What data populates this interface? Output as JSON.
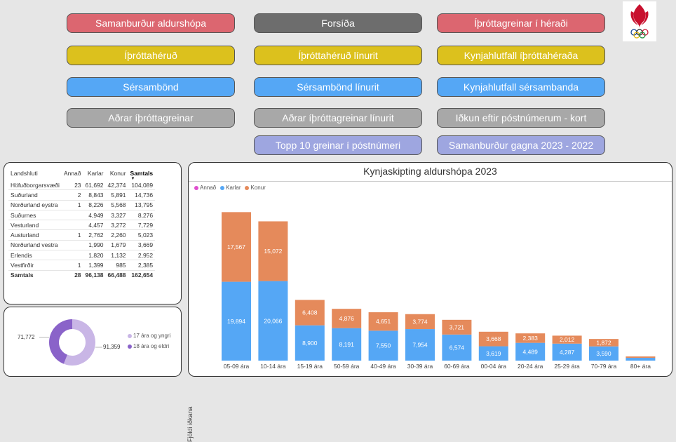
{
  "nav": {
    "samanburdur_aldurshopa": "Samanburður aldurshópa",
    "forsida": "Forsíða",
    "ithrottagreinar_i_heradi": "Íþróttagreinar í héraði",
    "ithrottaherud": "Íþróttahéruð",
    "ithrottaherud_linurit": "Íþróttahéruð línurit",
    "kynjahlutfall_ithrottaherada": "Kynjahlutfall íþróttahéraða",
    "sersambond": "Sérsambönd",
    "sersambond_linurit": "Sérsambönd línurit",
    "kynjahlutfall_sersambanda": "Kynjahlutfall sérsambanda",
    "adrar_ithrottagreinar": "Aðrar íþróttagreinar",
    "adrar_ithrottagreinar_linurit": "Aðrar íþróttagreinar línurit",
    "idkun_eftir_postnumerum": "Iðkun eftir póstnúmerum - kort",
    "topp10": "Topp 10 greinar í póstnúmeri",
    "samanburdur_gagna": "Samanburður gagna 2023 - 2022"
  },
  "table": {
    "headers": [
      "Landshluti",
      "Annað",
      "Karlar",
      "Konur",
      "Samtals"
    ],
    "rows": [
      [
        "Höfuðborgarsvæði",
        "23",
        "61,692",
        "42,374",
        "104,089"
      ],
      [
        "Suðurland",
        "2",
        "8,843",
        "5,891",
        "14,736"
      ],
      [
        "Norðurland eystra",
        "1",
        "8,226",
        "5,568",
        "13,795"
      ],
      [
        "Suðurnes",
        "",
        "4,949",
        "3,327",
        "8,276"
      ],
      [
        "Vesturland",
        "",
        "4,457",
        "3,272",
        "7,729"
      ],
      [
        "Austurland",
        "1",
        "2,762",
        "2,260",
        "5,023"
      ],
      [
        "Norðurland vestra",
        "",
        "1,990",
        "1,679",
        "3,669"
      ],
      [
        "Erlendis",
        "",
        "1,820",
        "1,132",
        "2,952"
      ],
      [
        "Vestfirðir",
        "1",
        "1,399",
        "985",
        "2,385"
      ]
    ],
    "total": [
      "Samtals",
      "28",
      "96,138",
      "66,488",
      "162,654"
    ]
  },
  "donut": {
    "label_left": "71,772",
    "label_right": "91,359",
    "legend": [
      "17 ára og yngri",
      "18 ára og eldri"
    ],
    "colors": [
      "#c9b6e6",
      "#8a63c9"
    ]
  },
  "colors": {
    "annad": "#e04fcf",
    "karlar": "#55a7f5",
    "konur": "#e58a5b"
  },
  "chart_data": [
    {
      "type": "bar",
      "stacked": true,
      "title": "Kynjaskipting aldurshópa 2023",
      "ylabel": "Fjöldi iðkana",
      "xlabel": "",
      "legend_position": "top-left",
      "legend": [
        "Annað",
        "Karlar",
        "Konur"
      ],
      "categories": [
        "05-09 ára",
        "10-14 ára",
        "15-19 ára",
        "50-59 ára",
        "40-49 ára",
        "30-39 ára",
        "60-69 ára",
        "00-04 ára",
        "20-24 ára",
        "25-29 ára",
        "70-79 ára",
        "80+ ára"
      ],
      "series": [
        {
          "name": "Annað",
          "values": [
            0,
            0,
            0,
            0,
            0,
            0,
            0,
            0,
            0,
            0,
            0,
            0
          ]
        },
        {
          "name": "Karlar",
          "values": [
            19894,
            20066,
            8900,
            8191,
            7550,
            7954,
            6574,
            3619,
            4489,
            4287,
            3590,
            700
          ],
          "labels": [
            "19,894",
            "20,066",
            "8,900",
            "8,191",
            "7,550",
            "7,954",
            "6,574",
            "3,619",
            "4,489",
            "4,287",
            "3,590",
            ""
          ]
        },
        {
          "name": "Konur",
          "values": [
            17567,
            15072,
            6408,
            4876,
            4651,
            3774,
            3721,
            3668,
            2383,
            2012,
            1872,
            350
          ],
          "labels": [
            "17,567",
            "15,072",
            "6,408",
            "4,876",
            "4,651",
            "3,774",
            "3,721",
            "3,668",
            "2,383",
            "2,012",
            "1,872",
            ""
          ]
        }
      ],
      "ylim": [
        0,
        40000
      ]
    },
    {
      "type": "pie",
      "donut": true,
      "categories": [
        "17 ára og yngri",
        "18 ára og eldri"
      ],
      "values": [
        91359,
        71772
      ],
      "labels": [
        "91,359",
        "71,772"
      ]
    }
  ]
}
